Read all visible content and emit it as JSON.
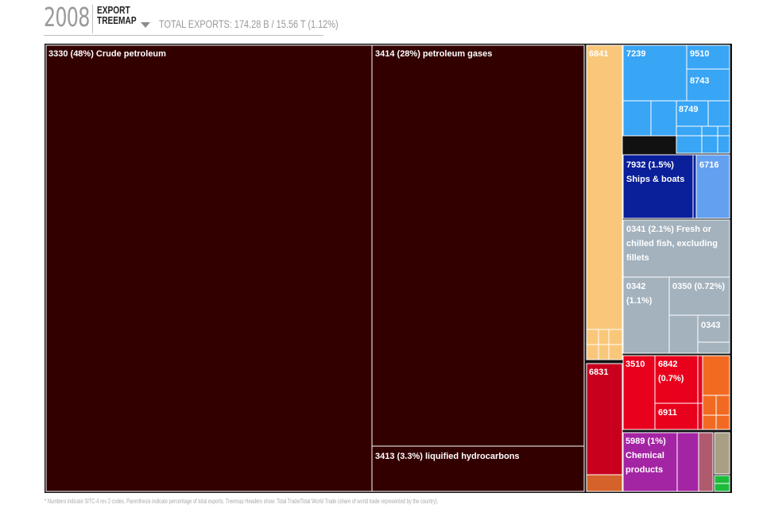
{
  "header": {
    "year": "2008",
    "mode_line1": "EXPORT",
    "mode_line2": "TREEMAP",
    "totals": "TOTAL EXPORTS: 174.28 B / 15.56 T (1.12%)"
  },
  "footnote": "* Numbers indicate SITC-4 rev 2 codes. Parenthesis indicate percentage of total exports. Treemap Headers show: Total Trade/Total World Trade (share of world trade represented by the country).",
  "colors": {
    "petroleum": "#330000",
    "tan": "#f9c77a",
    "red": "#c8001e",
    "bright_red": "#e8001c",
    "orange": "#d4622a",
    "orange_bright": "#f26a22",
    "blue": "#38a5f5",
    "navy": "#0a1f9a",
    "light_blue": "#64a0f0",
    "grey_blue": "#a3b2bd",
    "purple": "#a425a4",
    "mauve": "#b05a6e",
    "khaki": "#a89f84",
    "green": "#1dbb3c",
    "border": "#ffffff",
    "group_border": "#111111"
  },
  "chart_data": {
    "type": "treemap",
    "title": "",
    "units": "percent of total exports",
    "items": [
      {
        "code": "3330",
        "share": 48,
        "label": "3330 (48%) Crude petroleum"
      },
      {
        "code": "3414",
        "share": 28,
        "label": "3414 (28%) petroleum gases"
      },
      {
        "code": "3413",
        "share": 3.3,
        "label": "3413 (3.3%) liquified hydrocarbons"
      },
      {
        "code": "6841",
        "share": null,
        "label": "6841"
      },
      {
        "code": "6831",
        "share": null,
        "label": "6831"
      },
      {
        "code": "7239",
        "share": null,
        "label": "7239"
      },
      {
        "code": "9510",
        "share": null,
        "label": "9510"
      },
      {
        "code": "8743",
        "share": null,
        "label": "8743"
      },
      {
        "code": "8749",
        "share": null,
        "label": "8749"
      },
      {
        "code": "7932",
        "share": 1.5,
        "label": "7932 (1.5%) Ships & boats"
      },
      {
        "code": "6716",
        "share": null,
        "label": "6716"
      },
      {
        "code": "0341",
        "share": 2.1,
        "label": "0341 (2.1%) Fresh or chilled fish, excluding fillets"
      },
      {
        "code": "0342",
        "share": 1.1,
        "label": "0342 (1.1%)"
      },
      {
        "code": "0350",
        "share": 0.72,
        "label": "0350 (0.72%)"
      },
      {
        "code": "0343",
        "share": null,
        "label": "0343"
      },
      {
        "code": "3510",
        "share": null,
        "label": "3510"
      },
      {
        "code": "6842",
        "share": 0.7,
        "label": "6842 (0.7%)"
      },
      {
        "code": "6911",
        "share": null,
        "label": "6911"
      },
      {
        "code": "5989",
        "share": 1,
        "label": "5989 (1%) Chemical products"
      }
    ]
  }
}
